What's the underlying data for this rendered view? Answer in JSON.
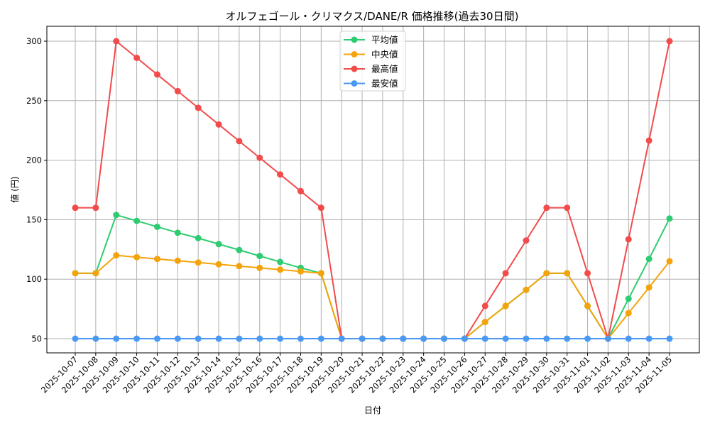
{
  "chart_data": {
    "type": "line",
    "title": "オルフェゴール・クリマクス/DANE/R 価格推移(過去30日間)",
    "xlabel": "日付",
    "ylabel": "値 (円)",
    "ylim": [
      38,
      313
    ],
    "yticks": [
      50,
      100,
      150,
      200,
      250,
      300
    ],
    "grid": true,
    "legend_position": "upper center",
    "categories": [
      "2025-10-07",
      "2025-10-08",
      "2025-10-09",
      "2025-10-10",
      "2025-10-11",
      "2025-10-12",
      "2025-10-13",
      "2025-10-14",
      "2025-10-15",
      "2025-10-16",
      "2025-10-17",
      "2025-10-18",
      "2025-10-19",
      "2025-10-20",
      "2025-10-21",
      "2025-10-22",
      "2025-10-23",
      "2025-10-24",
      "2025-10-25",
      "2025-10-26",
      "2025-10-27",
      "2025-10-28",
      "2025-10-29",
      "2025-10-30",
      "2025-10-31",
      "2025-11-01",
      "2025-11-02",
      "2025-11-03",
      "2025-11-04",
      "2025-11-05"
    ],
    "series": [
      {
        "name": "平均値",
        "color": "#2ecc71",
        "values": [
          105,
          105,
          154,
          149,
          144,
          139,
          134.5,
          129.5,
          124.5,
          119.5,
          114.5,
          109.5,
          105,
          50,
          50,
          50,
          50,
          50,
          50,
          50,
          64,
          77.5,
          91,
          105,
          105,
          77.5,
          50,
          83.5,
          117,
          151
        ]
      },
      {
        "name": "中央値",
        "color": "#f5a30a",
        "values": [
          105,
          105,
          120,
          118.5,
          117,
          115.5,
          114,
          112.5,
          111,
          109.5,
          108,
          106.5,
          105,
          50,
          50,
          50,
          50,
          50,
          50,
          50,
          64,
          77.5,
          91,
          105,
          105,
          77.5,
          50,
          71.5,
          93,
          115
        ]
      },
      {
        "name": "最高値",
        "color": "#f24b4b",
        "values": [
          160,
          160,
          300,
          286,
          272,
          258,
          244,
          230,
          216,
          202,
          188,
          174,
          160,
          50,
          50,
          50,
          50,
          50,
          50,
          50,
          77.5,
          105,
          132.5,
          160,
          160,
          105,
          50,
          133.5,
          216.5,
          300
        ]
      },
      {
        "name": "最安値",
        "color": "#4a9af5",
        "values": [
          50,
          50,
          50,
          50,
          50,
          50,
          50,
          50,
          50,
          50,
          50,
          50,
          50,
          50,
          50,
          50,
          50,
          50,
          50,
          50,
          50,
          50,
          50,
          50,
          50,
          50,
          50,
          50,
          50,
          50
        ]
      }
    ]
  }
}
